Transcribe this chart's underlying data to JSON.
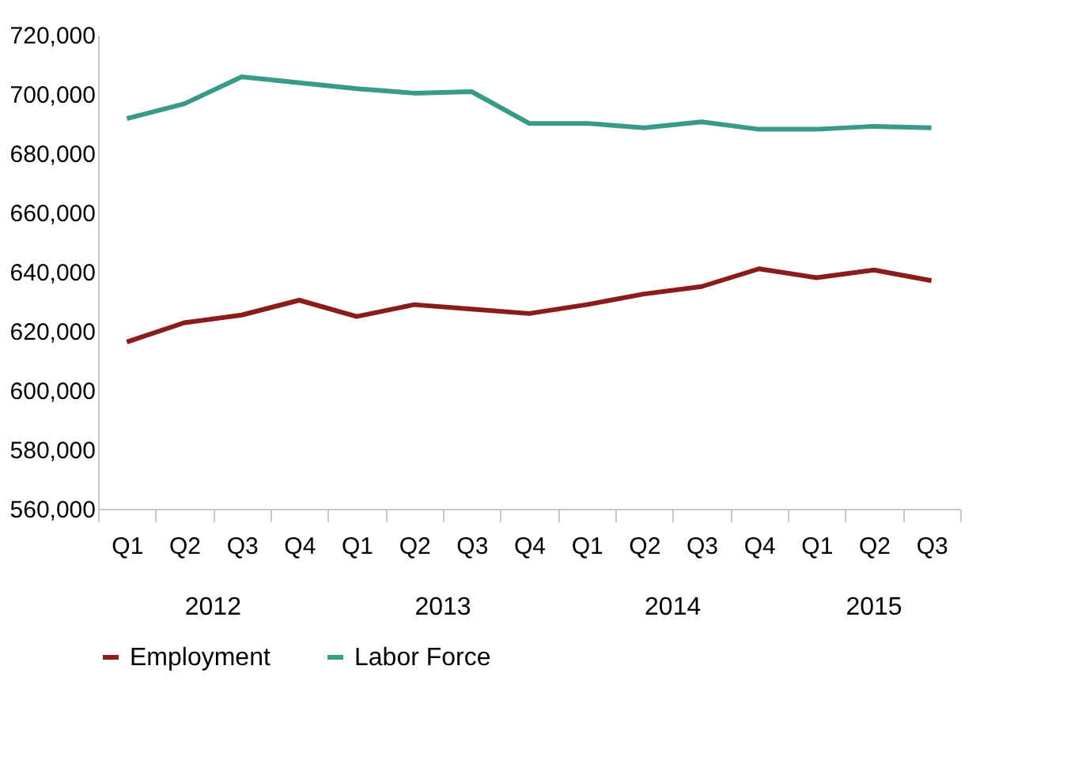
{
  "chart_data": {
    "type": "line",
    "categories": [
      "Q1",
      "Q2",
      "Q3",
      "Q4",
      "Q1",
      "Q2",
      "Q3",
      "Q4",
      "Q1",
      "Q2",
      "Q3",
      "Q4",
      "Q1",
      "Q2",
      "Q3"
    ],
    "annotations": [
      "2012",
      "2013",
      "2014",
      "2015"
    ],
    "series": [
      {
        "name": "Employment",
        "color": "#8b1c1c",
        "values": [
          616300,
          622800,
          625400,
          630400,
          624900,
          628900,
          627400,
          625900,
          628900,
          632500,
          635000,
          641000,
          638000,
          640600,
          637000
        ]
      },
      {
        "name": "Labor Force",
        "color": "#3a9a8a",
        "values": [
          691700,
          696700,
          705800,
          703800,
          701800,
          700300,
          700800,
          690100,
          690100,
          688600,
          690600,
          688100,
          688100,
          689100,
          688600
        ]
      }
    ],
    "ylim": [
      560000,
      720000
    ],
    "yticks": [
      {
        "value": 560000,
        "label": "560,000"
      },
      {
        "value": 580000,
        "label": "580,000"
      },
      {
        "value": 600000,
        "label": "600,000"
      },
      {
        "value": 620000,
        "label": "620,000"
      },
      {
        "value": 640000,
        "label": "640,000"
      },
      {
        "value": 660000,
        "label": "660,000"
      },
      {
        "value": 680000,
        "label": "680,000"
      },
      {
        "value": 700000,
        "label": "700,000"
      },
      {
        "value": 720000,
        "label": "720,000"
      }
    ],
    "grid": false,
    "legend": "bottom",
    "marker": "none",
    "line_style": "solid"
  }
}
